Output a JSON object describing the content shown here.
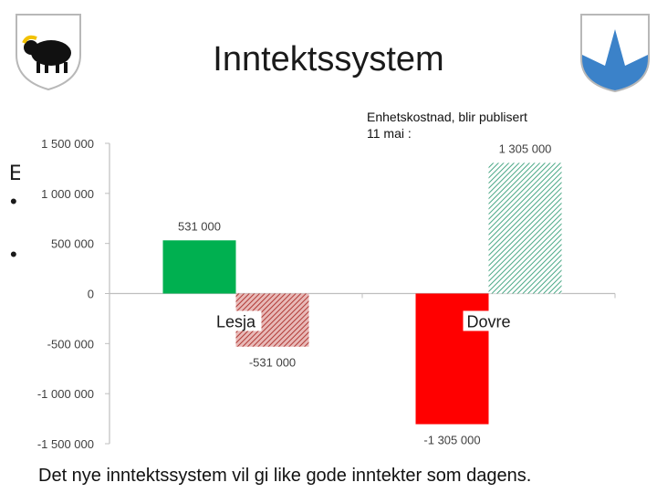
{
  "slide": {
    "title": "Inntektssystem",
    "footer": "Det nye inntektssystem vil gi like gode inntekter som dagens.",
    "background_letter": "E",
    "bullet_symbol": "•",
    "note_lines": [
      "Enhetskostnad, blir publisert",
      "11 mai :"
    ]
  },
  "logos": {
    "left": "lesja-coat-of-arms",
    "right": "dovre-coat-of-arms"
  },
  "chart_data": {
    "type": "bar",
    "categories": [
      "Lesja",
      "Dovre"
    ],
    "series": [
      {
        "values": [
          531000,
          -1305000
        ],
        "labels": [
          "531 000",
          "-1 305 000"
        ],
        "colors": [
          "#00b050",
          "#ff0000"
        ],
        "pattern": "solid"
      },
      {
        "values": [
          -531000,
          1305000
        ],
        "labels": [
          "-531 000",
          "1 305 000"
        ],
        "colors": [
          "#c0504d",
          "#4aa886"
        ],
        "pattern": "hatched"
      }
    ],
    "ylim": [
      -1500000,
      1500000
    ],
    "yticks": [
      1500000,
      1000000,
      500000,
      0,
      -500000,
      -1000000,
      -1500000
    ],
    "ytick_labels": [
      "1 500 000",
      "1 000 000",
      "500 000",
      "0",
      "-500 000",
      "-1 000 000",
      "-1 500 000"
    ],
    "grid": false
  }
}
